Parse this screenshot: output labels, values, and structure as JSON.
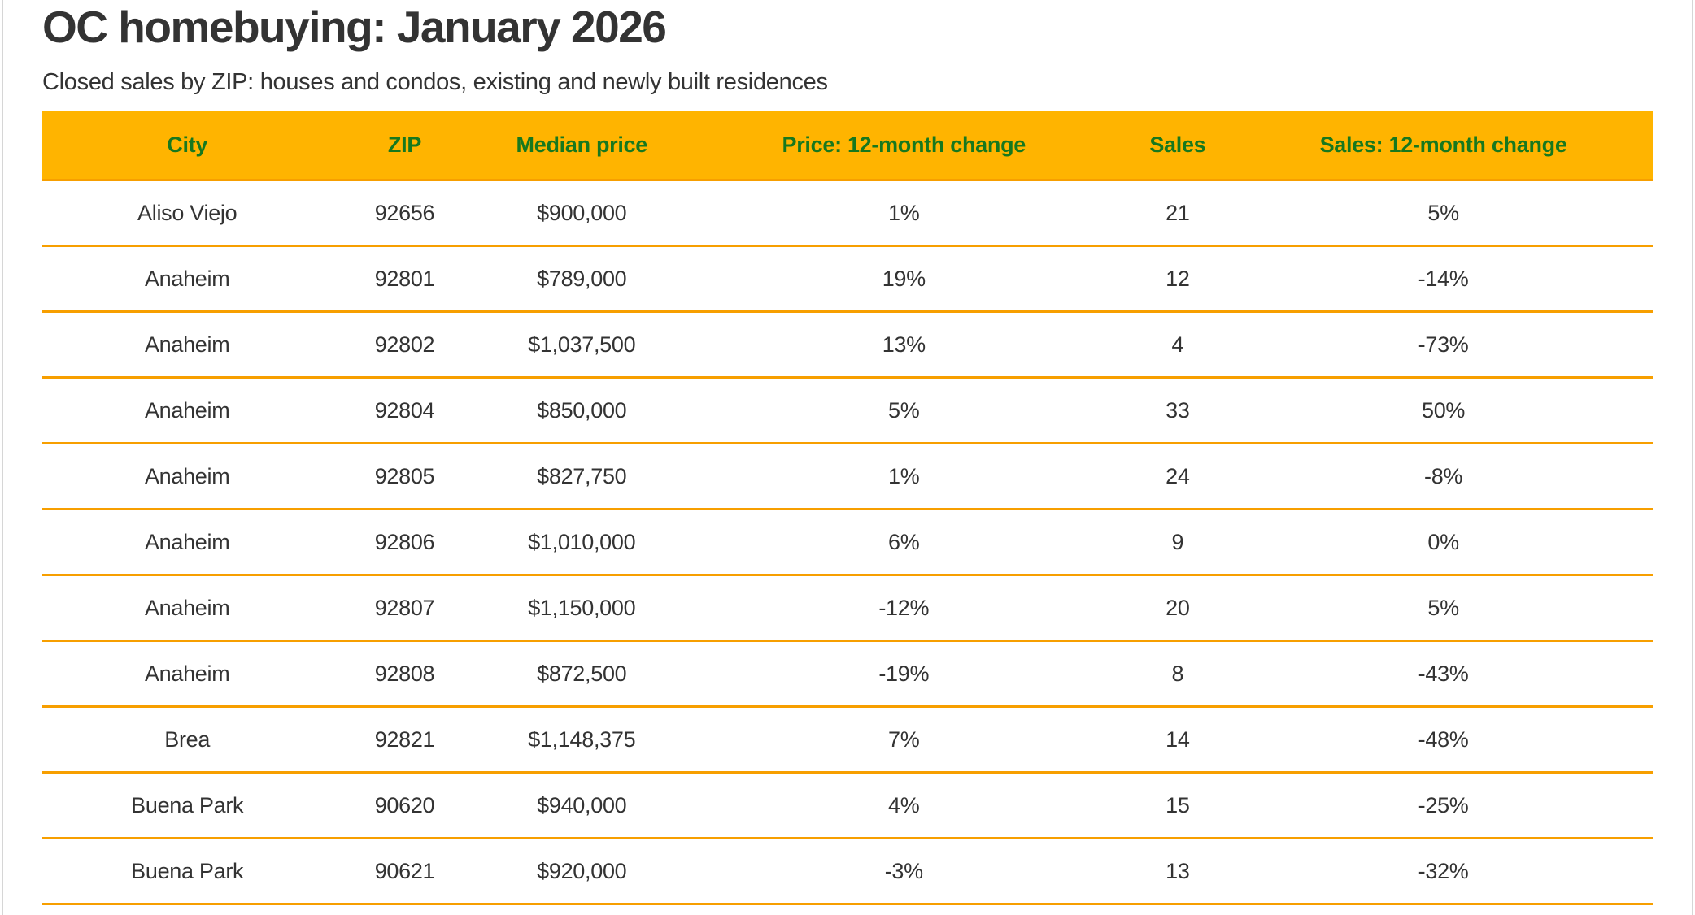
{
  "header": {
    "title": "OC homebuying: January 2026",
    "subtitle": "Closed sales by ZIP: houses and condos, existing and newly built residences"
  },
  "colors": {
    "header_bg": "#ffb400",
    "header_text": "#17781e",
    "divider": "#f79f00",
    "body_text": "#333333",
    "frame_border": "#d6d6d6"
  },
  "chart_data": {
    "type": "table",
    "title": "OC homebuying: January 2026",
    "subtitle": "Closed sales by ZIP: houses and condos, existing and newly built residences",
    "columns": [
      "City",
      "ZIP",
      "Median price",
      "Price: 12-month change",
      "Sales",
      "Sales: 12-month change"
    ],
    "rows": [
      [
        "Aliso Viejo",
        "92656",
        "$900,000",
        "1%",
        "21",
        "5%"
      ],
      [
        "Anaheim",
        "92801",
        "$789,000",
        "19%",
        "12",
        "-14%"
      ],
      [
        "Anaheim",
        "92802",
        "$1,037,500",
        "13%",
        "4",
        "-73%"
      ],
      [
        "Anaheim",
        "92804",
        "$850,000",
        "5%",
        "33",
        "50%"
      ],
      [
        "Anaheim",
        "92805",
        "$827,750",
        "1%",
        "24",
        "-8%"
      ],
      [
        "Anaheim",
        "92806",
        "$1,010,000",
        "6%",
        "9",
        "0%"
      ],
      [
        "Anaheim",
        "92807",
        "$1,150,000",
        "-12%",
        "20",
        "5%"
      ],
      [
        "Anaheim",
        "92808",
        "$872,500",
        "-19%",
        "8",
        "-43%"
      ],
      [
        "Brea",
        "92821",
        "$1,148,375",
        "7%",
        "14",
        "-48%"
      ],
      [
        "Buena Park",
        "90620",
        "$940,000",
        "4%",
        "15",
        "-25%"
      ],
      [
        "Buena Park",
        "90621",
        "$920,000",
        "-3%",
        "13",
        "-32%"
      ]
    ]
  }
}
